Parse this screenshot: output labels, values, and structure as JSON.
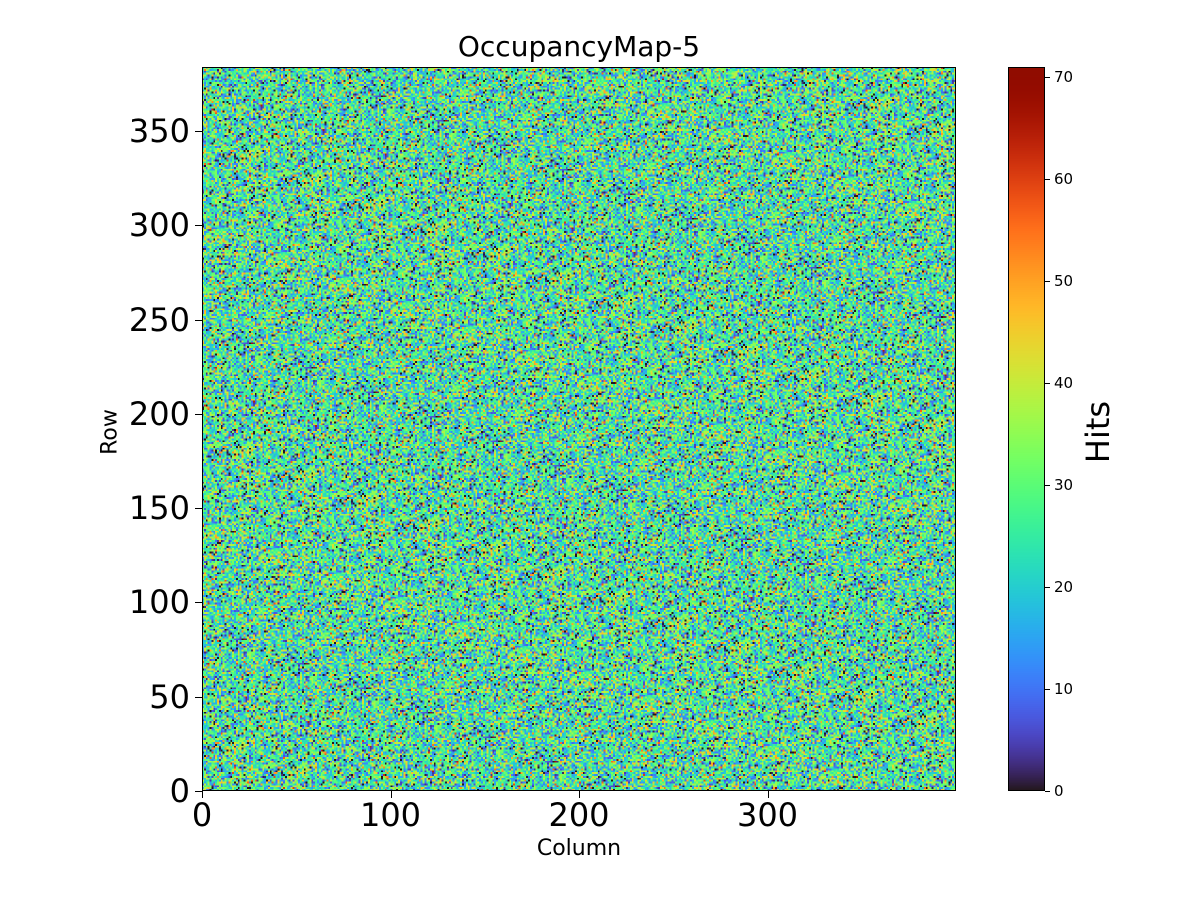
{
  "chart_data": {
    "type": "heatmap",
    "title": "OccupancyMap-5",
    "xlabel": "Column",
    "ylabel": "Row",
    "colorbar_label": "Hits",
    "colormap": "turbo",
    "n_columns": 400,
    "n_rows": 384,
    "xlim": [
      0,
      400
    ],
    "ylim": [
      0,
      384
    ],
    "vmin": 0,
    "vmax": 71,
    "value_distribution": {
      "approx_mean": 25,
      "approx_std": 13,
      "min": 0,
      "max": 71
    },
    "x_ticks": [
      {
        "value": 0,
        "label": "0"
      },
      {
        "value": 100,
        "label": "100"
      },
      {
        "value": 200,
        "label": "200"
      },
      {
        "value": 300,
        "label": "300"
      }
    ],
    "y_ticks": [
      {
        "value": 0,
        "label": "0"
      },
      {
        "value": 50,
        "label": "50"
      },
      {
        "value": 100,
        "label": "100"
      },
      {
        "value": 150,
        "label": "150"
      },
      {
        "value": 200,
        "label": "200"
      },
      {
        "value": 250,
        "label": "250"
      },
      {
        "value": 300,
        "label": "300"
      },
      {
        "value": 350,
        "label": "350"
      }
    ],
    "colorbar_ticks": [
      {
        "value": 0,
        "label": "0"
      },
      {
        "value": 10,
        "label": "10"
      },
      {
        "value": 20,
        "label": "20"
      },
      {
        "value": 30,
        "label": "30"
      },
      {
        "value": 40,
        "label": "40"
      },
      {
        "value": 50,
        "label": "50"
      },
      {
        "value": 60,
        "label": "60"
      },
      {
        "value": 70,
        "label": "70"
      }
    ]
  }
}
